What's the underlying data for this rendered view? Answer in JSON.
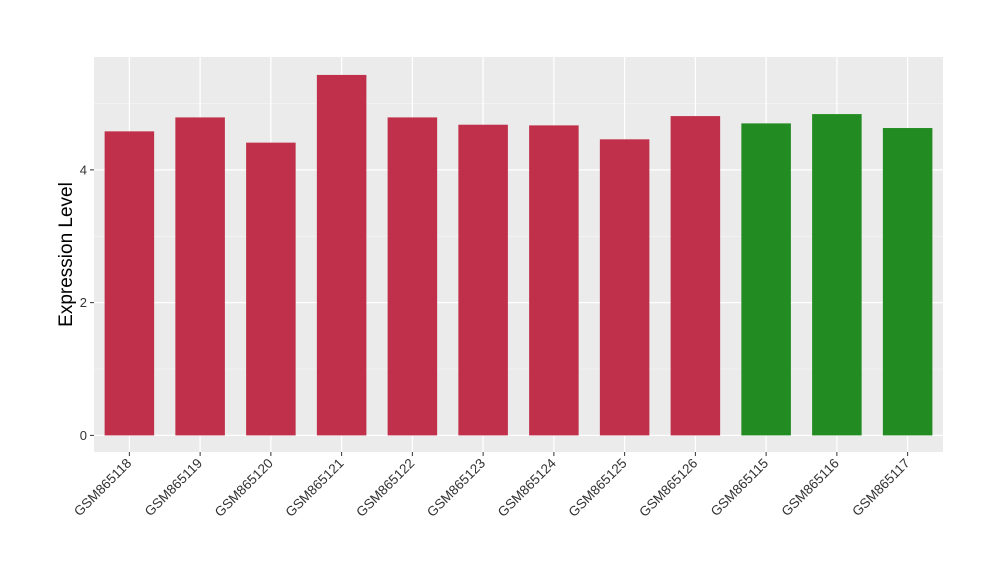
{
  "chart_data": {
    "type": "bar",
    "ylabel": "Expression Level",
    "xlabel": "",
    "title": "",
    "ylim": [
      -0.25,
      5.7
    ],
    "yticks": [
      0,
      2,
      4
    ],
    "grid": true,
    "categories": [
      "GSM865118",
      "GSM865119",
      "GSM865120",
      "GSM865121",
      "GSM865122",
      "GSM865123",
      "GSM865124",
      "GSM865125",
      "GSM865126",
      "GSM865115",
      "GSM865116",
      "GSM865117"
    ],
    "values": [
      4.58,
      4.79,
      4.41,
      5.43,
      4.79,
      4.68,
      4.67,
      4.46,
      4.81,
      4.7,
      4.84,
      4.63
    ],
    "bar_colors": [
      "#c0304a",
      "#c0304a",
      "#c0304a",
      "#c0304a",
      "#c0304a",
      "#c0304a",
      "#c0304a",
      "#c0304a",
      "#c0304a",
      "#228b22",
      "#228b22",
      "#228b22"
    ],
    "colors": {
      "panel_background": "#ebebeb",
      "grid_major": "#ffffff",
      "grid_minor": "#f5f5f5",
      "axis_text": "#333333",
      "axis_title": "#000000"
    }
  }
}
